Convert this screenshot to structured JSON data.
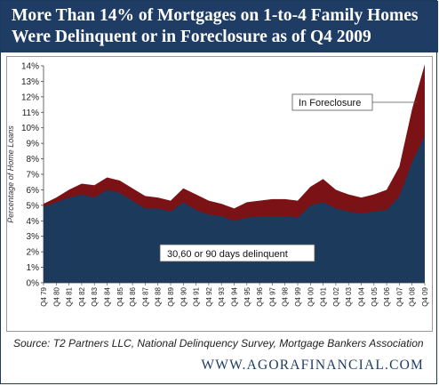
{
  "title_line1": "More Than 14% of Mortgages on 1-to-4 Family Homes",
  "title_line2": "Were Delinquent or in Foreclosure as of Q4 2009",
  "source": "Source: T2 Partners LLC, National Delinquency Survey, Mortgage Bankers Association",
  "url": "WWW.AGORAFINANCIAL.COM",
  "colors": {
    "title_bg": "#1f3d64",
    "delinquent": "#1c3a5c",
    "foreclosure": "#7a1216"
  },
  "chart_data": {
    "type": "area",
    "stacked": true,
    "ylabel": "Percentage of Home Loans",
    "ylim": [
      0,
      14
    ],
    "ytick_labels": [
      "0%",
      "1%",
      "2%",
      "3%",
      "4%",
      "5%",
      "6%",
      "7%",
      "8%",
      "9%",
      "10%",
      "11%",
      "12%",
      "13%",
      "14%"
    ],
    "x_labels": [
      "Q4 79",
      "Q4 80",
      "Q4 81",
      "Q4 82",
      "Q4 83",
      "Q4 84",
      "Q4 85",
      "Q4 86",
      "Q4 87",
      "Q4 88",
      "Q4 89",
      "Q4 90",
      "Q4 91",
      "Q4 92",
      "Q4 93",
      "Q4 94",
      "Q4 95",
      "Q4 96",
      "Q4 97",
      "Q4 98",
      "Q4 99",
      "Q4 00",
      "Q4 01",
      "Q4 02",
      "Q4 03",
      "Q4 04",
      "Q4 05",
      "Q4 06",
      "Q4 07",
      "Q4 08",
      "Q4 09"
    ],
    "annotations": [
      {
        "id": "foreclosure",
        "text": "In Foreclosure"
      },
      {
        "id": "delinquent",
        "text": "30,60 or 90 days delinquent"
      }
    ],
    "series": [
      {
        "name": "30,60 or 90 days delinquent",
        "values": [
          4.9,
          5.2,
          5.5,
          5.7,
          5.5,
          6.0,
          5.8,
          5.3,
          4.8,
          4.8,
          4.6,
          5.2,
          4.7,
          4.4,
          4.3,
          4.0,
          4.2,
          4.3,
          4.3,
          4.3,
          4.2,
          5.0,
          5.2,
          4.8,
          4.6,
          4.5,
          4.6,
          4.7,
          5.6,
          7.8,
          9.5
        ]
      },
      {
        "name": "In Foreclosure",
        "values": [
          0.2,
          0.3,
          0.5,
          0.7,
          0.8,
          0.8,
          0.8,
          0.8,
          0.8,
          0.7,
          0.7,
          0.9,
          1.0,
          0.9,
          0.8,
          0.8,
          1.0,
          1.0,
          1.1,
          1.1,
          1.1,
          1.2,
          1.5,
          1.2,
          1.1,
          1.0,
          1.1,
          1.3,
          1.9,
          3.4,
          4.6
        ]
      }
    ]
  }
}
